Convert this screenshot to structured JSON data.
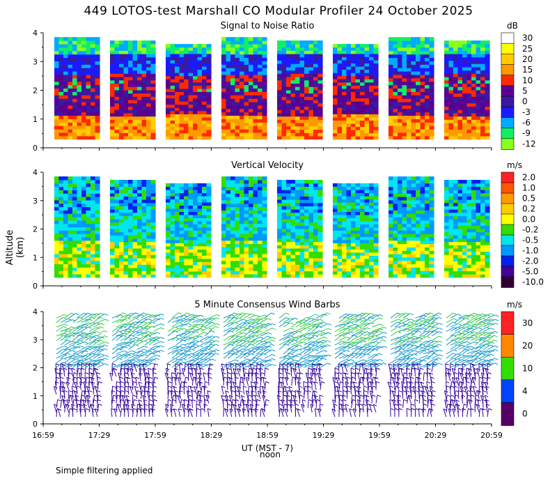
{
  "title": "449 LOTOS-test Marshall CO Modular Profiler 24 October 2025",
  "y_axis_label": "Altitude (km)",
  "x_axis_label": "UT  (MST - 7)",
  "noon_label": "noon",
  "footnote": "Simple filtering applied",
  "colors": {
    "background": "#ffffff",
    "axis": "#000000"
  },
  "chart_data": [
    {
      "type": "heatmap",
      "title": "Signal to Noise Ratio",
      "units": "dB",
      "ylim": [
        0,
        4
      ],
      "yticks": [
        "0",
        "1",
        "2",
        "3",
        "4"
      ],
      "xticks": [
        "16:59",
        "17:29",
        "17:59",
        "18:29",
        "18:59",
        "19:29",
        "19:59",
        "20:29",
        "20:59"
      ],
      "legend": [
        {
          "label": "30",
          "color": "#ffffff"
        },
        {
          "label": "25",
          "color": "#ffff00"
        },
        {
          "label": "20",
          "color": "#ffcc00"
        },
        {
          "label": "15",
          "color": "#ff9900"
        },
        {
          "label": "10",
          "color": "#ff2a00"
        },
        {
          "label": "5",
          "color": "#5a0090"
        },
        {
          "label": "0",
          "color": "#3a1aa0"
        },
        {
          "label": "-3",
          "color": "#1a1aff"
        },
        {
          "label": "-6",
          "color": "#00aaff"
        },
        {
          "label": "-9",
          "color": "#11ee66"
        },
        {
          "label": "-12",
          "color": "#88ff22"
        }
      ]
    },
    {
      "type": "heatmap",
      "title": "Vertical Velocity",
      "units": "m/s",
      "ylim": [
        0,
        4
      ],
      "yticks": [
        "0",
        "1",
        "2",
        "3",
        "4"
      ],
      "xticks": [
        "16:59",
        "17:29",
        "17:59",
        "18:29",
        "18:59",
        "19:29",
        "19:59",
        "20:29",
        "20:59"
      ],
      "legend": [
        {
          "label": "2.0",
          "color": "#ff2222"
        },
        {
          "label": "1.0",
          "color": "#ff5500"
        },
        {
          "label": "0.5",
          "color": "#ff9900"
        },
        {
          "label": "0.2",
          "color": "#ffcc00"
        },
        {
          "label": "0.0",
          "color": "#ffff00"
        },
        {
          "label": "-0.2",
          "color": "#33dd00"
        },
        {
          "label": "-0.5",
          "color": "#00e5ee"
        },
        {
          "label": "-1.0",
          "color": "#0099ff"
        },
        {
          "label": "-2.0",
          "color": "#0022ee"
        },
        {
          "label": "-5.0",
          "color": "#440099"
        },
        {
          "label": "-10.0",
          "color": "#330033"
        }
      ]
    },
    {
      "type": "wind_barbs",
      "title": "5 Minute Consensus Wind Barbs",
      "units": "m/s",
      "ylim": [
        0,
        4
      ],
      "yticks": [
        "0",
        "1",
        "2",
        "3",
        "4"
      ],
      "xticks": [
        "16:59",
        "17:29",
        "17:59",
        "18:29",
        "18:59",
        "19:29",
        "19:59",
        "20:29",
        "20:59"
      ],
      "legend": [
        {
          "label": "30",
          "color": "#ff2222"
        },
        {
          "label": "20",
          "color": "#ff8800"
        },
        {
          "label": "10",
          "color": "#33dd00"
        },
        {
          "label": "4",
          "color": "#0044ff"
        },
        {
          "label": "0",
          "color": "#550066"
        }
      ]
    }
  ]
}
